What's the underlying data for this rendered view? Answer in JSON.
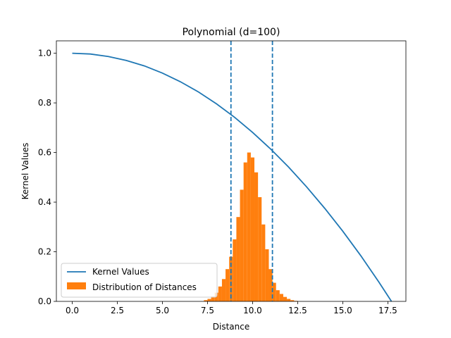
{
  "chart_data": {
    "type": "line",
    "title": "Polynomial (d=100)",
    "xlabel": "Distance",
    "ylabel": "Kernel Values",
    "xlim": [
      -0.88,
      18.5
    ],
    "ylim": [
      0.0,
      1.05
    ],
    "xticks": [
      0.0,
      2.5,
      5.0,
      7.5,
      10.0,
      12.5,
      15.0,
      17.5
    ],
    "xtick_labels": [
      "0.0",
      "2.5",
      "5.0",
      "7.5",
      "10.0",
      "12.5",
      "15.0",
      "17.5"
    ],
    "yticks": [
      0.0,
      0.2,
      0.4,
      0.6,
      0.8,
      1.0
    ],
    "ytick_labels": [
      "0.0",
      "0.2",
      "0.4",
      "0.6",
      "0.8",
      "1.0"
    ],
    "grid": false,
    "legend": {
      "placement": "lower-left",
      "entries": [
        {
          "label": "Kernel Values",
          "kind": "line",
          "color": "#1f77b4"
        },
        {
          "label": "Distribution of Distances",
          "kind": "patch",
          "color": "#ff7f0e"
        }
      ]
    },
    "series": [
      {
        "name": "Kernel Values",
        "type": "line",
        "color": "#1f77b4",
        "x": [
          0.0,
          1.0,
          2.0,
          3.0,
          4.0,
          5.0,
          6.0,
          7.0,
          8.0,
          9.0,
          10.0,
          11.0,
          12.0,
          13.0,
          14.0,
          15.0,
          16.0,
          17.0,
          17.7
        ],
        "y": [
          1.0,
          0.997,
          0.987,
          0.971,
          0.949,
          0.92,
          0.885,
          0.844,
          0.796,
          0.742,
          0.681,
          0.614,
          0.541,
          0.461,
          0.375,
          0.283,
          0.184,
          0.078,
          0.0
        ]
      },
      {
        "name": "Distribution of Distances",
        "type": "histogram",
        "color": "#ff7f0e",
        "x": [
          7.4,
          7.6,
          7.8,
          8.0,
          8.2,
          8.4,
          8.6,
          8.8,
          9.0,
          9.2,
          9.4,
          9.6,
          9.8,
          10.0,
          10.2,
          10.4,
          10.6,
          10.8,
          11.0,
          11.2,
          11.4,
          11.6,
          11.8,
          12.0,
          12.2,
          12.4
        ],
        "y": [
          0.005,
          0.01,
          0.02,
          0.035,
          0.06,
          0.09,
          0.13,
          0.18,
          0.25,
          0.34,
          0.45,
          0.56,
          0.6,
          0.58,
          0.52,
          0.42,
          0.31,
          0.21,
          0.13,
          0.075,
          0.045,
          0.03,
          0.018,
          0.01,
          0.005,
          0.002
        ]
      }
    ],
    "vlines": [
      {
        "x": 8.8,
        "style": "dashed",
        "color": "#1f77b4"
      },
      {
        "x": 11.1,
        "style": "dashed",
        "color": "#1f77b4"
      }
    ]
  }
}
